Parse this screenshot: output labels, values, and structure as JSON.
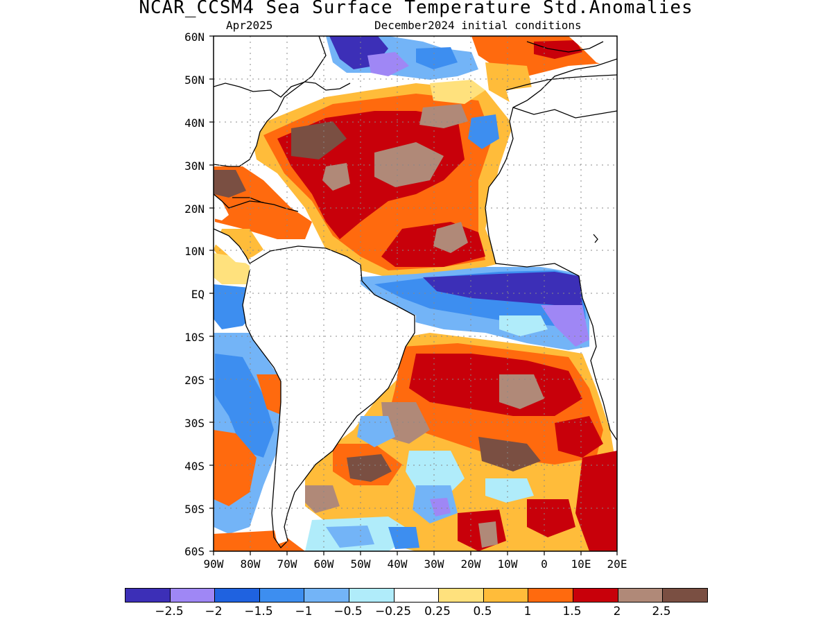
{
  "title": "NCAR_CCSM4 Sea Surface Temperature Std.Anomalies",
  "valid_month": "Apr2025",
  "init_label": "December2024 initial conditions",
  "lat_labels": [
    "60N",
    "50N",
    "40N",
    "30N",
    "20N",
    "10N",
    "EQ",
    "10S",
    "20S",
    "30S",
    "40S",
    "50S",
    "60S"
  ],
  "lon_labels": [
    "90W",
    "80W",
    "70W",
    "60W",
    "50W",
    "40W",
    "30W",
    "20W",
    "10W",
    "0",
    "10E",
    "20E"
  ],
  "colorbar": {
    "labels": [
      "−2.5",
      "−2",
      "−1.5",
      "−1",
      "−0.5",
      "−0.25",
      "0.25",
      "0.5",
      "1",
      "1.5",
      "2",
      "2.5"
    ],
    "colors": [
      "#3c2fb7",
      "#9f87f5",
      "#1f62e0",
      "#3d8ef0",
      "#73b4f7",
      "#b0ecfa",
      "#ffffff",
      "#ffe17d",
      "#ffbc3a",
      "#ff6a0e",
      "#c8000a",
      "#b08978",
      "#7a4f42"
    ]
  }
}
